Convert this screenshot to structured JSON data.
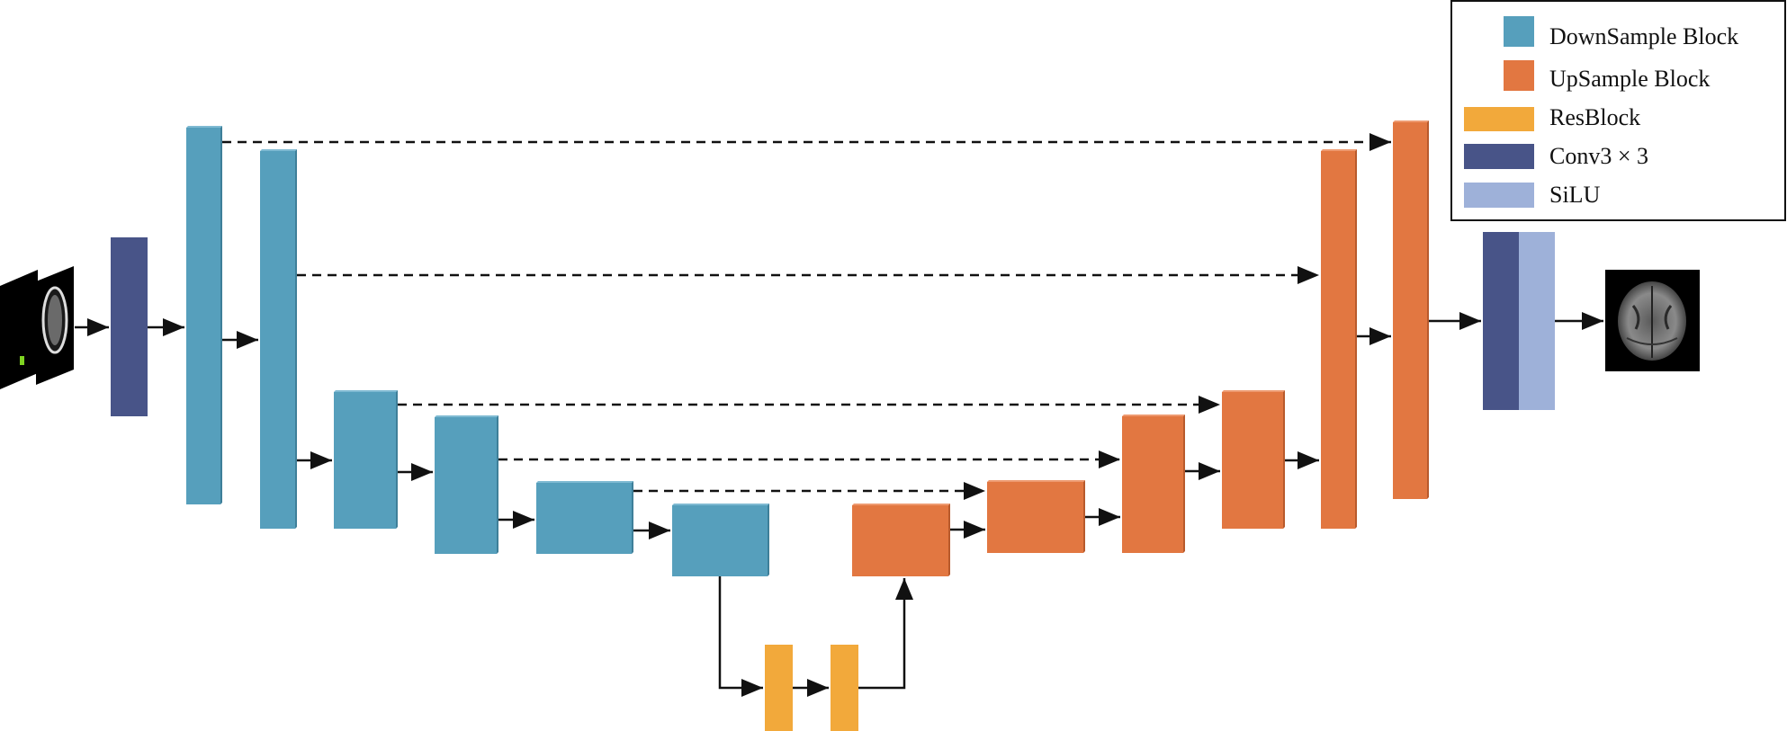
{
  "colors": {
    "downsample": "#569fbc",
    "upsample": "#e27741",
    "resblock": "#f2a93b",
    "conv": "#485488",
    "silu": "#9eb1d9",
    "arrow": "#111111",
    "scan_bg": "#000000"
  },
  "legend": {
    "items": [
      {
        "label": "DownSample Block",
        "color_key": "downsample"
      },
      {
        "label": "UpSample Block",
        "color_key": "upsample"
      },
      {
        "label": "ResBlock",
        "color_key": "resblock"
      },
      {
        "label": "Conv3 × 3",
        "color_key": "conv"
      },
      {
        "label": "SiLU",
        "color_key": "silu"
      }
    ]
  },
  "images": {
    "input_scan": "ct-scan-input-image",
    "output_scan": "mri-scan-output-image"
  }
}
